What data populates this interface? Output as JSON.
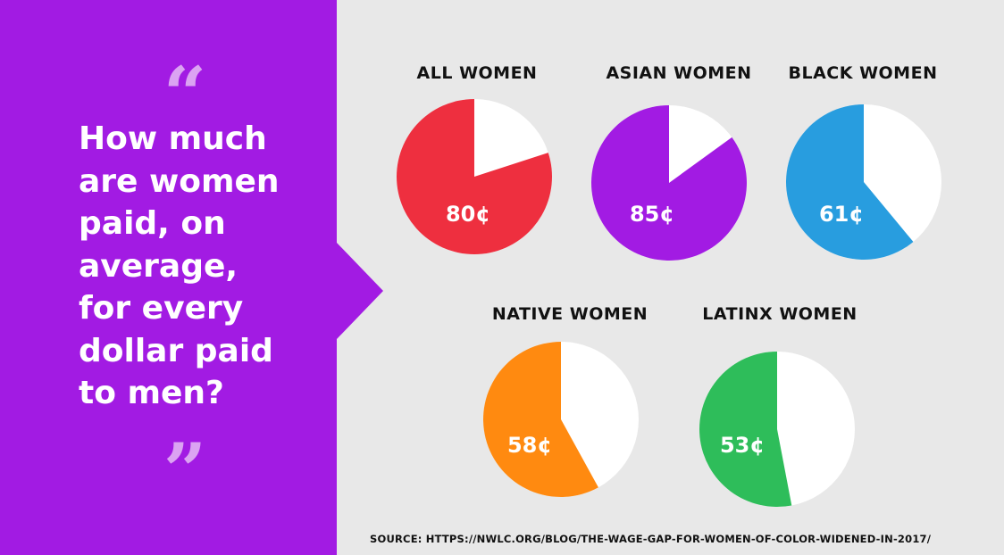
{
  "quote_open": "“",
  "quote_close": "”",
  "question_lines": [
    "How much",
    "are women",
    "paid, on",
    "average,",
    "for every",
    "dollar paid",
    "to men?"
  ],
  "source": "SOURCE: HTTPS://NWLC.ORG/BLOG/THE-WAGE-GAP-FOR-WOMEN-OF-COLOR-WIDENED-IN-2017/",
  "colors": {
    "left_panel": "#a21be3",
    "quote": "#dba3f2",
    "background": "#e8e8e8",
    "remainder": "#ffffff"
  },
  "chart_data": [
    {
      "type": "pie",
      "title": "ALL WOMEN",
      "value": 80,
      "total": 100,
      "label": "80¢",
      "color": "#ee2f3f"
    },
    {
      "type": "pie",
      "title": "ASIAN WOMEN",
      "value": 85,
      "total": 100,
      "label": "85¢",
      "color": "#a21be3"
    },
    {
      "type": "pie",
      "title": "BLACK WOMEN",
      "value": 61,
      "total": 100,
      "label": "61¢",
      "color": "#289ddf"
    },
    {
      "type": "pie",
      "title": "NATIVE WOMEN",
      "value": 58,
      "total": 100,
      "label": "58¢",
      "color": "#ff8a10"
    },
    {
      "type": "pie",
      "title": "LATINX WOMEN",
      "value": 53,
      "total": 100,
      "label": "53¢",
      "color": "#2ebd5a"
    }
  ]
}
